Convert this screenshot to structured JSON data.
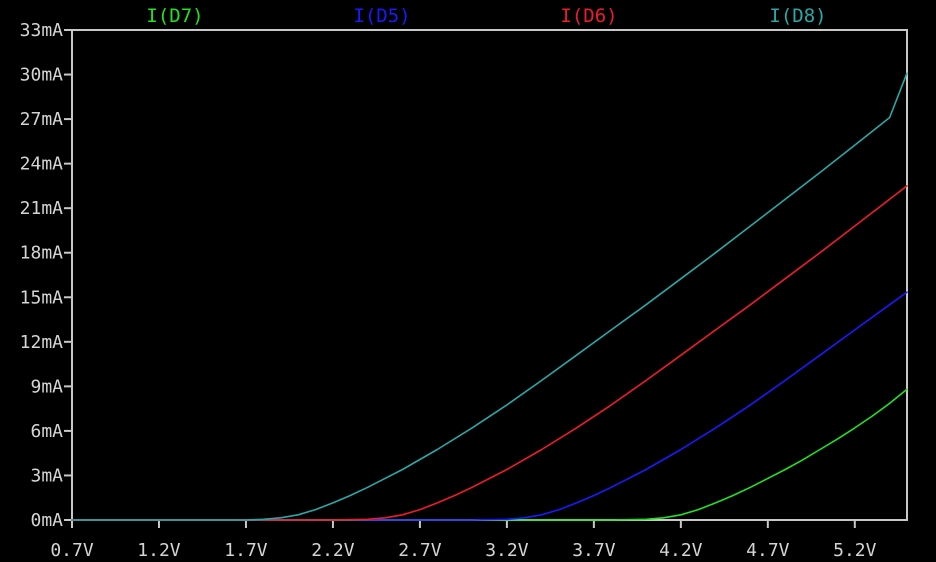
{
  "chart_data": {
    "type": "line",
    "title": "",
    "xlabel": "",
    "ylabel": "",
    "xlim": [
      0.7,
      5.5
    ],
    "ylim": [
      0,
      33
    ],
    "x_ticks": [
      "0.7V",
      "1.2V",
      "1.7V",
      "2.2V",
      "2.7V",
      "3.2V",
      "3.7V",
      "4.2V",
      "4.7V",
      "5.2V"
    ],
    "x_tick_values": [
      0.7,
      1.2,
      1.7,
      2.2,
      2.7,
      3.2,
      3.7,
      4.2,
      4.7,
      5.2
    ],
    "y_ticks": [
      "0mA",
      "3mA",
      "6mA",
      "9mA",
      "12mA",
      "15mA",
      "18mA",
      "21mA",
      "24mA",
      "27mA",
      "30mA",
      "33mA"
    ],
    "y_tick_values": [
      0,
      3,
      6,
      9,
      12,
      15,
      18,
      21,
      24,
      27,
      30,
      33
    ],
    "grid": false,
    "legend_position": "top",
    "colors": {
      "background": "#000000",
      "axes": "#c8c8c8",
      "tick_text": "#d4d4d4"
    },
    "series": [
      {
        "name": "I(D7)",
        "color": "#22e022",
        "x": [
          0.7,
          3.8,
          4.0,
          4.1,
          4.2,
          4.3,
          4.4,
          4.5,
          4.6,
          4.7,
          4.8,
          4.9,
          5.0,
          5.1,
          5.2,
          5.3,
          5.4,
          5.5
        ],
        "y": [
          0,
          0,
          0.05,
          0.15,
          0.35,
          0.7,
          1.15,
          1.65,
          2.2,
          2.8,
          3.4,
          4.05,
          4.75,
          5.45,
          6.2,
          7.0,
          7.85,
          8.8
        ]
      },
      {
        "name": "I(D5)",
        "color": "#1a1aff",
        "x": [
          0.7,
          3.0,
          3.2,
          3.3,
          3.4,
          3.5,
          3.6,
          3.7,
          3.8,
          3.9,
          4.0,
          4.2,
          4.4,
          4.6,
          4.8,
          5.0,
          5.2,
          5.4,
          5.5
        ],
        "y": [
          0,
          0,
          0.05,
          0.15,
          0.35,
          0.7,
          1.15,
          1.65,
          2.2,
          2.8,
          3.4,
          4.75,
          6.2,
          7.75,
          9.4,
          11.1,
          12.8,
          14.5,
          15.35
        ]
      },
      {
        "name": "I(D6)",
        "color": "#ee1c2a",
        "x": [
          0.7,
          2.2,
          2.4,
          2.5,
          2.6,
          2.7,
          2.8,
          2.9,
          3.0,
          3.2,
          3.4,
          3.6,
          3.8,
          4.0,
          4.2,
          4.4,
          4.6,
          4.8,
          5.0,
          5.2,
          5.4,
          5.5
        ],
        "y": [
          0,
          0,
          0.05,
          0.15,
          0.35,
          0.7,
          1.15,
          1.65,
          2.2,
          3.4,
          4.75,
          6.2,
          7.75,
          9.4,
          11.1,
          12.8,
          14.5,
          16.25,
          18.0,
          19.8,
          21.6,
          22.5
        ]
      },
      {
        "name": "I(D8)",
        "color": "#2aa8a8",
        "x": [
          0.7,
          1.7,
          1.8,
          1.9,
          2.0,
          2.1,
          2.2,
          2.3,
          2.4,
          2.6,
          2.8,
          3.0,
          3.2,
          3.4,
          3.6,
          3.8,
          4.0,
          4.2,
          4.4,
          4.6,
          4.8,
          5.0,
          5.2,
          5.4,
          5.5
        ],
        "y": [
          0,
          0,
          0.05,
          0.15,
          0.35,
          0.7,
          1.15,
          1.65,
          2.2,
          3.4,
          4.75,
          6.2,
          7.75,
          9.4,
          11.1,
          12.8,
          14.5,
          16.25,
          18.0,
          19.8,
          21.6,
          23.4,
          25.25,
          27.1,
          30.1
        ]
      }
    ]
  }
}
